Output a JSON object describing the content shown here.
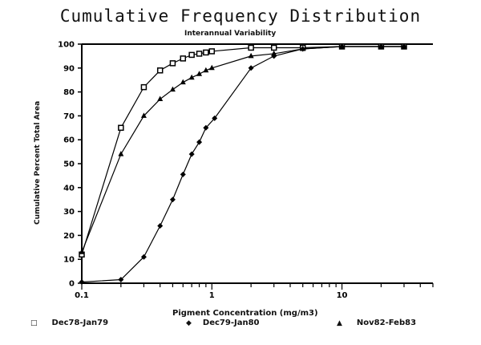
{
  "chart_data": {
    "type": "line",
    "title": "Cumulative Frequency Distribution",
    "subtitle": "Interannual Variability",
    "xlabel": "Pigment Concentration (mg/m3)",
    "ylabel": "Cumulative Percent Total Area",
    "x_scale": "log",
    "xlim": [
      0.1,
      50
    ],
    "ylim": [
      0,
      100
    ],
    "x_tick_labels": [
      "0.1",
      "1",
      "10"
    ],
    "y_tick_labels": [
      "0",
      "10",
      "20",
      "30",
      "40",
      "50",
      "60",
      "70",
      "80",
      "90",
      "100"
    ],
    "grid": false,
    "legend_position": "bottom",
    "series": [
      {
        "name": "Dec78-Jan79",
        "marker": "square",
        "x": [
          0.1,
          0.2,
          0.3,
          0.4,
          0.5,
          0.6,
          0.7,
          0.8,
          0.9,
          1,
          2,
          3,
          5,
          10,
          20,
          30
        ],
        "y": [
          12,
          65,
          82,
          89,
          92,
          94,
          95.5,
          96,
          96.5,
          97,
          98.5,
          98.5,
          98.5,
          99,
          99,
          99
        ]
      },
      {
        "name": "Dec79-Jan80",
        "marker": "diamond",
        "x": [
          0.1,
          0.2,
          0.3,
          0.4,
          0.5,
          0.6,
          0.7,
          0.8,
          0.9,
          1.05,
          2,
          3,
          5,
          10,
          20,
          30
        ],
        "y": [
          0.5,
          1.5,
          11,
          24,
          35,
          45.5,
          54,
          59,
          65,
          69,
          90,
          95,
          98,
          99,
          99,
          99
        ]
      },
      {
        "name": "Nov82-Feb83",
        "marker": "triangle",
        "x": [
          0.1,
          0.2,
          0.3,
          0.4,
          0.5,
          0.6,
          0.7,
          0.8,
          0.9,
          1,
          2,
          3,
          5,
          10,
          20,
          30
        ],
        "y": [
          13,
          54,
          70,
          77,
          81,
          84,
          86,
          87.5,
          89,
          90,
          95,
          96,
          98,
          99,
          99,
          99
        ]
      }
    ]
  }
}
